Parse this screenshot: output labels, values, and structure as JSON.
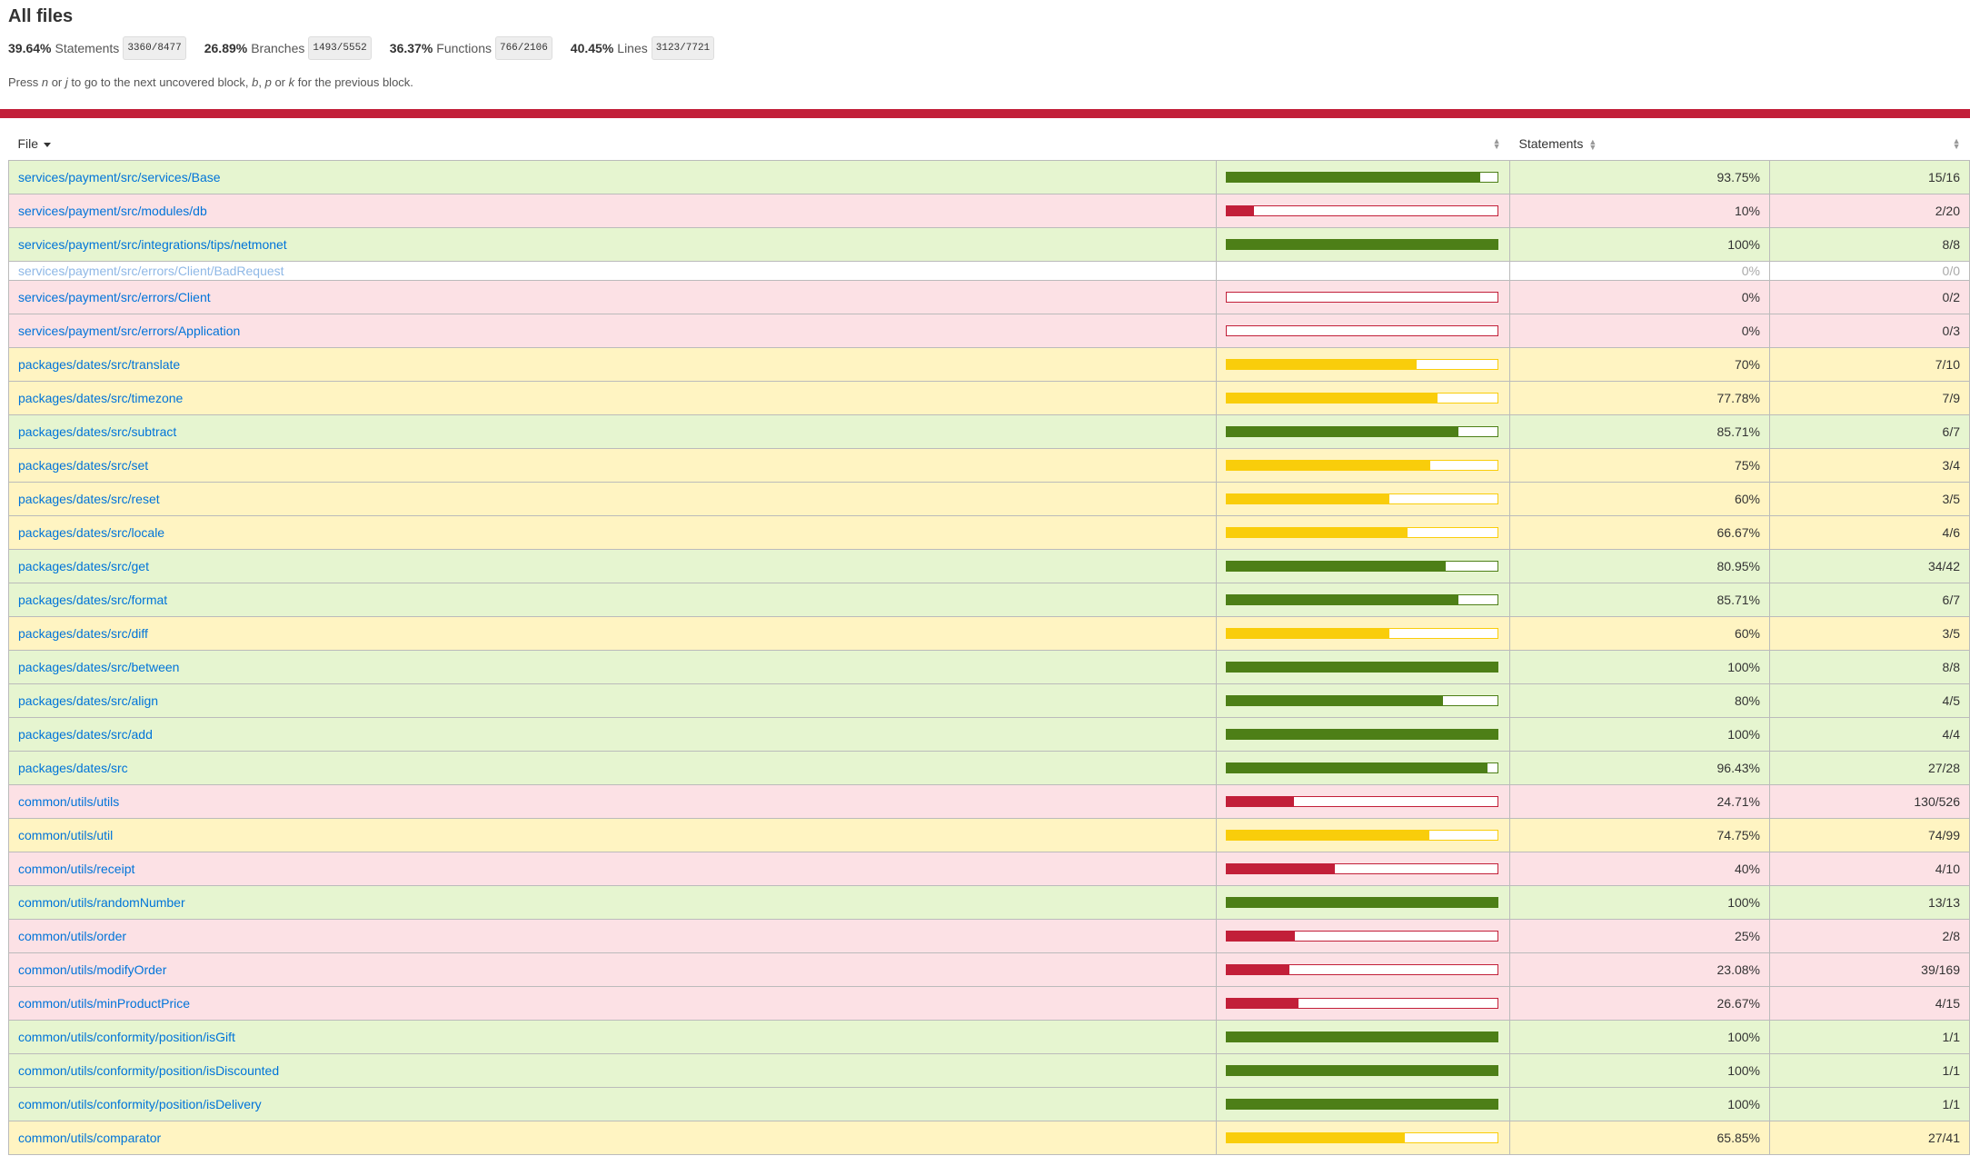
{
  "title": "All files",
  "summary": [
    {
      "pct": "39.64%",
      "label": "Statements",
      "frac": "3360/8477"
    },
    {
      "pct": "26.89%",
      "label": "Branches",
      "frac": "1493/5552"
    },
    {
      "pct": "36.37%",
      "label": "Functions",
      "frac": "766/2106"
    },
    {
      "pct": "40.45%",
      "label": "Lines",
      "frac": "3123/7721"
    }
  ],
  "hint": {
    "prefix": "Press ",
    "k1": "n",
    "or1": " or ",
    "k2": "j",
    "mid": " to go to the next uncovered block, ",
    "k3": "b",
    "comma": ", ",
    "k4": "p",
    "or2": " or ",
    "k5": "k",
    "suffix": " for the previous block."
  },
  "status_color": "#C21F39",
  "columns": {
    "file": "File",
    "statements": "Statements"
  },
  "colors": {
    "high_bg": "#E6F5D0",
    "medium_bg": "#FFF4C2",
    "low_bg": "#FCE1E5",
    "high_bar": "#4D7F17",
    "medium_bar": "#F9CD0B",
    "low_bar": "#C21F39",
    "link": "#0074D9"
  },
  "rows": [
    {
      "file": "services/payment/src/services/Base",
      "pct": "93.75%",
      "frac": "15/16",
      "value": 0.9375,
      "level": "high"
    },
    {
      "file": "services/payment/src/modules/db",
      "pct": "10%",
      "frac": "2/20",
      "value": 0.1,
      "level": "low"
    },
    {
      "file": "services/payment/src/integrations/tips/netmonet",
      "pct": "100%",
      "frac": "8/8",
      "value": 1.0,
      "level": "high"
    },
    {
      "file": "services/payment/src/errors/Client/BadRequest",
      "pct": "0%",
      "frac": "0/0",
      "value": 0,
      "level": "empty"
    },
    {
      "file": "services/payment/src/errors/Client",
      "pct": "0%",
      "frac": "0/2",
      "value": 0,
      "level": "low"
    },
    {
      "file": "services/payment/src/errors/Application",
      "pct": "0%",
      "frac": "0/3",
      "value": 0,
      "level": "low"
    },
    {
      "file": "packages/dates/src/translate",
      "pct": "70%",
      "frac": "7/10",
      "value": 0.7,
      "level": "medium"
    },
    {
      "file": "packages/dates/src/timezone",
      "pct": "77.78%",
      "frac": "7/9",
      "value": 0.7778,
      "level": "medium"
    },
    {
      "file": "packages/dates/src/subtract",
      "pct": "85.71%",
      "frac": "6/7",
      "value": 0.8571,
      "level": "high"
    },
    {
      "file": "packages/dates/src/set",
      "pct": "75%",
      "frac": "3/4",
      "value": 0.75,
      "level": "medium"
    },
    {
      "file": "packages/dates/src/reset",
      "pct": "60%",
      "frac": "3/5",
      "value": 0.6,
      "level": "medium"
    },
    {
      "file": "packages/dates/src/locale",
      "pct": "66.67%",
      "frac": "4/6",
      "value": 0.6667,
      "level": "medium"
    },
    {
      "file": "packages/dates/src/get",
      "pct": "80.95%",
      "frac": "34/42",
      "value": 0.8095,
      "level": "high"
    },
    {
      "file": "packages/dates/src/format",
      "pct": "85.71%",
      "frac": "6/7",
      "value": 0.8571,
      "level": "high"
    },
    {
      "file": "packages/dates/src/diff",
      "pct": "60%",
      "frac": "3/5",
      "value": 0.6,
      "level": "medium"
    },
    {
      "file": "packages/dates/src/between",
      "pct": "100%",
      "frac": "8/8",
      "value": 1.0,
      "level": "high"
    },
    {
      "file": "packages/dates/src/align",
      "pct": "80%",
      "frac": "4/5",
      "value": 0.8,
      "level": "high"
    },
    {
      "file": "packages/dates/src/add",
      "pct": "100%",
      "frac": "4/4",
      "value": 1.0,
      "level": "high"
    },
    {
      "file": "packages/dates/src",
      "pct": "96.43%",
      "frac": "27/28",
      "value": 0.9643,
      "level": "high"
    },
    {
      "file": "common/utils/utils",
      "pct": "24.71%",
      "frac": "130/526",
      "value": 0.2471,
      "level": "low"
    },
    {
      "file": "common/utils/util",
      "pct": "74.75%",
      "frac": "74/99",
      "value": 0.7475,
      "level": "medium"
    },
    {
      "file": "common/utils/receipt",
      "pct": "40%",
      "frac": "4/10",
      "value": 0.4,
      "level": "low"
    },
    {
      "file": "common/utils/randomNumber",
      "pct": "100%",
      "frac": "13/13",
      "value": 1.0,
      "level": "high"
    },
    {
      "file": "common/utils/order",
      "pct": "25%",
      "frac": "2/8",
      "value": 0.25,
      "level": "low"
    },
    {
      "file": "common/utils/modifyOrder",
      "pct": "23.08%",
      "frac": "39/169",
      "value": 0.2308,
      "level": "low"
    },
    {
      "file": "common/utils/minProductPrice",
      "pct": "26.67%",
      "frac": "4/15",
      "value": 0.2667,
      "level": "low"
    },
    {
      "file": "common/utils/conformity/position/isGift",
      "pct": "100%",
      "frac": "1/1",
      "value": 1.0,
      "level": "high"
    },
    {
      "file": "common/utils/conformity/position/isDiscounted",
      "pct": "100%",
      "frac": "1/1",
      "value": 1.0,
      "level": "high"
    },
    {
      "file": "common/utils/conformity/position/isDelivery",
      "pct": "100%",
      "frac": "1/1",
      "value": 1.0,
      "level": "high"
    },
    {
      "file": "common/utils/comparator",
      "pct": "65.85%",
      "frac": "27/41",
      "value": 0.6585,
      "level": "medium"
    }
  ]
}
